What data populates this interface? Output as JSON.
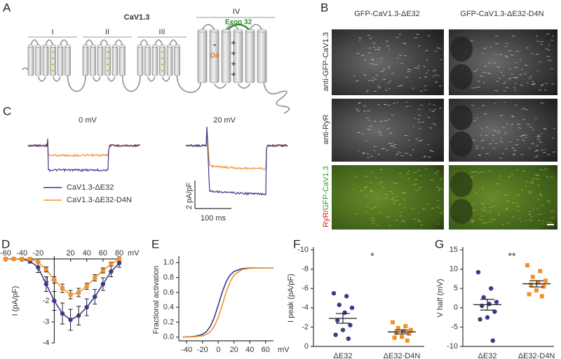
{
  "panel_labels": [
    "A",
    "B",
    "C",
    "D",
    "E",
    "F",
    "G"
  ],
  "diagram": {
    "title": "CaV1.3",
    "domains": [
      "I",
      "II",
      "III",
      "IV"
    ],
    "exon_label": "Exon 32",
    "d4_label": "D4",
    "d4_charge": "-",
    "s4_charges": [
      "+",
      "+",
      "+",
      "+"
    ]
  },
  "images": {
    "columns": [
      "GFP-CaV1.3-ΔE32",
      "GFP-CaV1.3-ΔE32-D4N"
    ],
    "rows": [
      "anti-GFP-CaV1.3",
      "anti-RyR"
    ],
    "merge_row": [
      "RyR/",
      "GFP-CaV1.3"
    ]
  },
  "traces": {
    "conditions": [
      "0 mV",
      "20 mV"
    ],
    "legend": [
      {
        "name": "CaV1.3-ΔE32",
        "color": "#3a3a8c"
      },
      {
        "name": "CaV1.3-ΔE32-D4N",
        "color": "#f0922a"
      }
    ],
    "scale_y": "2 pA/pF",
    "scale_x": "100 ms"
  },
  "chart_data": [
    {
      "type": "line",
      "xlabel": "mV",
      "ylabel": "I (pA/pF)",
      "x": [
        -60,
        -50,
        -40,
        -30,
        -20,
        -10,
        0,
        10,
        20,
        30,
        40,
        50,
        60,
        70,
        80
      ],
      "xlim": [
        -60,
        80
      ],
      "xticks": [
        -60,
        -40,
        -20,
        20,
        40,
        60,
        80
      ],
      "ylim": [
        -4,
        0
      ],
      "yticks": [
        -1,
        -2,
        -3,
        -4
      ],
      "series": [
        {
          "color": "#3a3a8c",
          "marker": "circle",
          "values": [
            0,
            0,
            -0.02,
            -0.1,
            -0.4,
            -1.2,
            -2.0,
            -2.6,
            -2.9,
            -2.7,
            -2.3,
            -1.8,
            -1.2,
            -0.6,
            -0.2
          ],
          "errors": [
            0.02,
            0.02,
            0.05,
            0.1,
            0.25,
            0.35,
            0.45,
            0.5,
            0.5,
            0.45,
            0.4,
            0.35,
            0.3,
            0.25,
            0.2
          ]
        },
        {
          "color": "#f0922a",
          "marker": "square",
          "values": [
            0,
            0,
            0,
            0,
            -0.15,
            -0.5,
            -1.0,
            -1.4,
            -1.7,
            -1.6,
            -1.3,
            -0.9,
            -0.55,
            -0.25,
            0
          ],
          "errors": [
            0.02,
            0.02,
            0.02,
            0.03,
            0.08,
            0.12,
            0.15,
            0.2,
            0.2,
            0.2,
            0.15,
            0.15,
            0.12,
            0.1,
            0.1
          ]
        }
      ]
    },
    {
      "type": "line",
      "xlabel": "mV",
      "ylabel": "Fractional activation",
      "x": [
        -45,
        -40,
        -30,
        -20,
        -15,
        -10,
        -5,
        0,
        5,
        10,
        15,
        20,
        30,
        40,
        50,
        60,
        70
      ],
      "xlim": [
        -50,
        70
      ],
      "xticks": [
        -40,
        -20,
        0,
        20,
        40,
        60
      ],
      "ylim": [
        -0.05,
        1.05
      ],
      "yticks": [
        {
          "value": 0,
          "label": "0.0"
        },
        {
          "value": 0.2,
          "label": "0.2"
        },
        {
          "value": 0.4,
          "label": "0.4"
        },
        {
          "value": 0.6,
          "label": "0.6"
        },
        {
          "value": 0.8,
          "label": "0.8"
        },
        {
          "value": 1,
          "label": "1.0"
        }
      ],
      "series": [
        {
          "color": "#3a3a8c",
          "values": [
            0.001,
            0.002,
            0.008,
            0.035,
            0.073,
            0.145,
            0.264,
            0.429,
            0.603,
            0.744,
            0.833,
            0.882,
            0.919,
            0.928,
            0.93,
            0.93,
            0.93
          ]
        },
        {
          "color": "#f0922a",
          "values": [
            0.001,
            0.001,
            0.004,
            0.017,
            0.035,
            0.073,
            0.145,
            0.264,
            0.429,
            0.603,
            0.744,
            0.833,
            0.907,
            0.925,
            0.929,
            0.93,
            0.93
          ]
        }
      ]
    },
    {
      "type": "strip",
      "ylabel": "I peak (pA/pF)",
      "annotation": "*",
      "categories": [
        "ΔE32",
        "ΔE32-D4N"
      ],
      "ylim": [
        0,
        -10
      ],
      "yticks": [
        -10,
        -8,
        -6,
        -4,
        -2,
        0
      ],
      "groups": [
        {
          "color": "#3a3a8c",
          "marker": "circle",
          "values": [
            -5.5,
            -5.2,
            -4.3,
            -4.0,
            -3.5,
            -2.7,
            -2.2,
            -1.7,
            -1.2,
            -0.8
          ],
          "mean": -2.9,
          "sem": 0.5
        },
        {
          "color": "#f0922a",
          "marker": "square",
          "values": [
            -2.5,
            -2.1,
            -1.9,
            -1.7,
            -1.6,
            -1.4,
            -1.3,
            -1.0,
            -0.9,
            -0.6
          ],
          "mean": -1.5,
          "sem": 0.2
        }
      ]
    },
    {
      "type": "strip",
      "ylabel": "V half (mV)",
      "annotation": "**",
      "categories": [
        "ΔE32",
        "ΔE32-D4N"
      ],
      "ylim": [
        -10,
        15
      ],
      "yticks": [
        -10,
        -5,
        0,
        5,
        10,
        15
      ],
      "groups": [
        {
          "color": "#3a3a8c",
          "marker": "circle",
          "values": [
            9.2,
            5.0,
            2.7,
            1.5,
            1.0,
            0.5,
            -1.0,
            -2.5,
            -3.0,
            -8.5
          ],
          "mean": 0.8,
          "sem": 1.4
        },
        {
          "color": "#f0922a",
          "marker": "square",
          "values": [
            11.0,
            9.5,
            8.0,
            7.0,
            6.5,
            6.0,
            5.5,
            4.5,
            3.5,
            3.0
          ],
          "mean": 6.2,
          "sem": 0.8
        }
      ]
    }
  ]
}
